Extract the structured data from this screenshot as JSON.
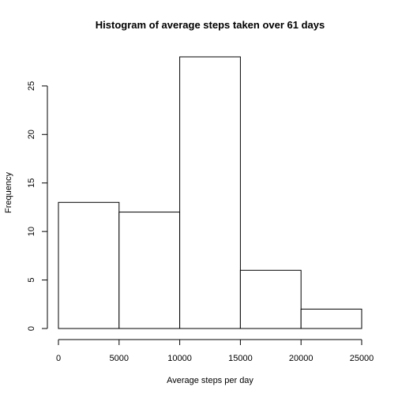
{
  "chart_data": {
    "type": "bar",
    "title": "Histogram of average steps taken over 61 days",
    "xlabel": "Average steps per day",
    "ylabel": "Frequency",
    "bins": [
      {
        "from": 0,
        "to": 5000,
        "count": 13
      },
      {
        "from": 5000,
        "to": 10000,
        "count": 12
      },
      {
        "from": 10000,
        "to": 15000,
        "count": 28
      },
      {
        "from": 15000,
        "to": 20000,
        "count": 6
      },
      {
        "from": 20000,
        "to": 25000,
        "count": 2
      }
    ],
    "x_ticks": [
      0,
      5000,
      10000,
      15000,
      20000,
      25000
    ],
    "y_ticks": [
      0,
      5,
      10,
      15,
      20,
      25
    ],
    "xlim": [
      0,
      25000
    ],
    "ylim": [
      0,
      28
    ],
    "grid": false,
    "legend": "none"
  }
}
